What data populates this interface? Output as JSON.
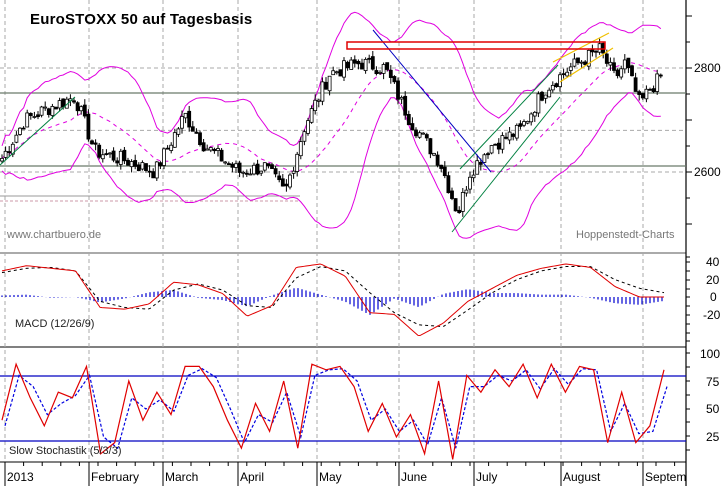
{
  "title": "EuroSTOXX 50 auf Tagesbasis",
  "watermark_left": "www.chartbuero.de",
  "watermark_right": "Hoppenstedt-Charts",
  "macd_label": "MACD (12/26/9)",
  "stoch_label": "Slow Stochastik (5/3/3)",
  "colors": {
    "bollinger": "#e000e0",
    "macd_line": "#e00000",
    "signal_line": "#000000",
    "histogram": "#0000d0",
    "stoch_k": "#e00000",
    "stoch_d": "#0000e0",
    "downtrend": "#0000c0",
    "uptrend": "#008040",
    "channel": "#f0c000",
    "resistance_box": "#e00000"
  },
  "chart_data": [
    {
      "type": "candlestick",
      "title": "EuroSTOXX 50 auf Tagesbasis",
      "ylabel": "",
      "y_ticks": [
        2600,
        2800
      ],
      "ylim": [
        2450,
        2900
      ],
      "x_labels": [
        "2013",
        "February",
        "March",
        "April",
        "May",
        "June",
        "July",
        "August",
        "Septem"
      ],
      "horizontal_lines": [
        2750,
        2610
      ],
      "overlays": [
        "Bollinger Bands",
        "Moving Average (dashed)",
        "Trendlines",
        "Resistance box ~2830-2840"
      ],
      "approx_close": {
        "2013-01-start": 2620,
        "2013-01-mid": 2700,
        "2013-01-end": 2740,
        "2013-02-mid": 2620,
        "2013-02-end": 2610,
        "2013-03-mid": 2700,
        "2013-03-end": 2620,
        "2013-04-mid": 2560,
        "2013-04-end": 2700,
        "2013-05-mid": 2800,
        "2013-05-end": 2800,
        "2013-06-mid": 2660,
        "2013-06-end": 2530,
        "2013-07-mid": 2640,
        "2013-07-end": 2760,
        "2013-08-mid": 2830,
        "2013-08-end": 2740,
        "2013-09-start": 2800
      }
    },
    {
      "type": "line",
      "title": "MACD (12/26/9)",
      "y_ticks": [
        40,
        20,
        0,
        -20
      ],
      "ylim": [
        -45,
        50
      ],
      "series": [
        {
          "name": "MACD",
          "values": [
            30,
            36,
            33,
            30,
            -12,
            -14,
            -8,
            17,
            14,
            4,
            -22,
            -10,
            34,
            38,
            24,
            -18,
            -20,
            -45,
            -30,
            -5,
            10,
            25,
            33,
            38,
            34,
            12,
            0,
            0
          ]
        },
        {
          "name": "Signal",
          "values": [
            28,
            33,
            34,
            30,
            -5,
            -12,
            -14,
            8,
            15,
            8,
            -10,
            -12,
            22,
            35,
            30,
            5,
            -18,
            -32,
            -34,
            -15,
            5,
            20,
            30,
            35,
            35,
            20,
            10,
            5
          ]
        }
      ]
    },
    {
      "type": "line",
      "title": "Slow Stochastik (5/3/3)",
      "y_ticks": [
        100,
        75,
        50,
        25
      ],
      "ylim": [
        0,
        105
      ],
      "reference_lines": [
        80,
        20
      ],
      "series": [
        {
          "name": "%K",
          "values": [
            40,
            90,
            60,
            35,
            65,
            60,
            88,
            10,
            20,
            75,
            40,
            65,
            45,
            88,
            88,
            70,
            40,
            15,
            55,
            30,
            75,
            15,
            90,
            85,
            88,
            70,
            30,
            55,
            25,
            45,
            10,
            75,
            5,
            80,
            65,
            85,
            70,
            90,
            60,
            90,
            65,
            88,
            85,
            20,
            65,
            20,
            35,
            85
          ]
        },
        {
          "name": "%D",
          "values": [
            35,
            80,
            70,
            45,
            55,
            62,
            80,
            25,
            15,
            60,
            50,
            58,
            48,
            80,
            86,
            78,
            50,
            20,
            45,
            38,
            65,
            25,
            80,
            85,
            86,
            75,
            40,
            50,
            30,
            40,
            18,
            60,
            15,
            70,
            70,
            80,
            75,
            85,
            68,
            86,
            72,
            86,
            85,
            30,
            55,
            28,
            30,
            70
          ]
        }
      ]
    }
  ]
}
